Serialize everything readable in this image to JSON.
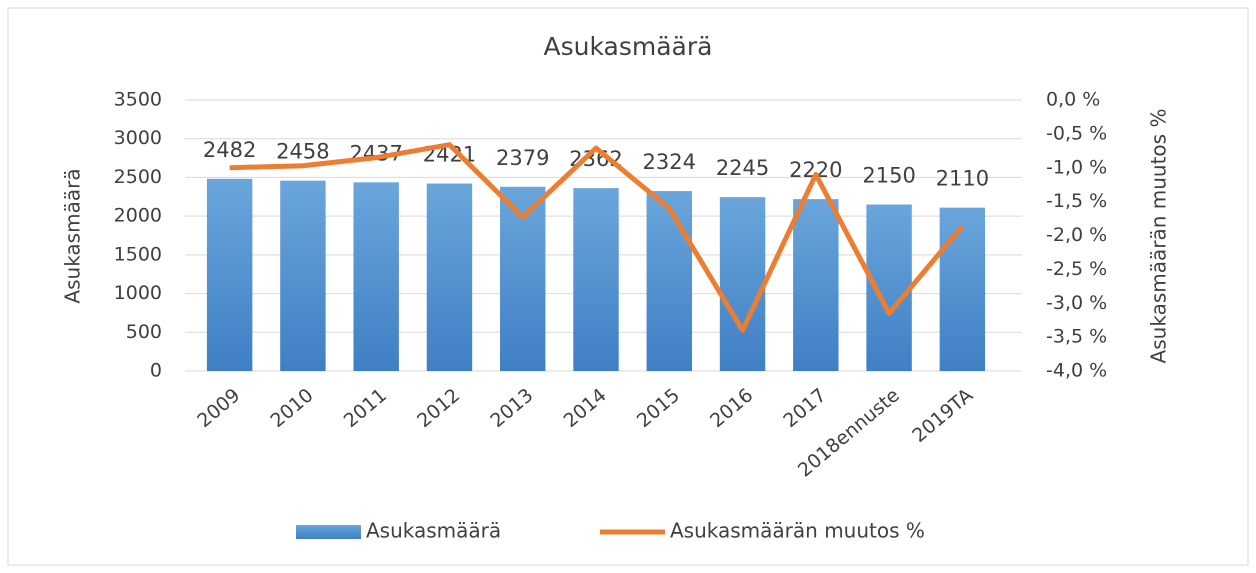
{
  "chart_data": {
    "type": "bar_line",
    "title": "Asukasmäärä",
    "categories": [
      "2009",
      "2010",
      "2011",
      "2012",
      "2013",
      "2014",
      "2015",
      "2016",
      "2017",
      "2018ennuste",
      "2019TA"
    ],
    "ylabel": "Asukasmäärä",
    "y2label": "Asukasmäärän muutos %",
    "ylim": [
      0,
      3500
    ],
    "yticks": [
      0,
      500,
      1000,
      1500,
      2000,
      2500,
      3000,
      3500
    ],
    "y2lim": [
      -4.0,
      0.0
    ],
    "y2ticks": [
      {
        "value": -4.0,
        "label": "-4,0 %"
      },
      {
        "value": -3.5,
        "label": "-3,5 %"
      },
      {
        "value": -3.0,
        "label": "-3,0 %"
      },
      {
        "value": -2.5,
        "label": "-2,5 %"
      },
      {
        "value": -2.0,
        "label": "-2,0 %"
      },
      {
        "value": -1.5,
        "label": "-1,5 %"
      },
      {
        "value": -1.0,
        "label": "-1,0 %"
      },
      {
        "value": -0.5,
        "label": "-0,5 %"
      },
      {
        "value": 0.0,
        "label": "0,0 %"
      }
    ],
    "grid": true,
    "legend": "bottom",
    "series": [
      {
        "name": "Asukasmäärä",
        "type": "bar",
        "color": "#5b9bd5",
        "values": [
          2482,
          2458,
          2437,
          2421,
          2379,
          2362,
          2324,
          2245,
          2220,
          2150,
          2110
        ]
      },
      {
        "name": "Asukasmäärän muutos %",
        "type": "line",
        "axis": "y2",
        "color": "#ed7d31",
        "values": [
          -1.0,
          -0.97,
          -0.85,
          -0.66,
          -1.73,
          -0.71,
          -1.6,
          -3.4,
          -1.1,
          -3.15,
          -1.86
        ]
      }
    ]
  }
}
